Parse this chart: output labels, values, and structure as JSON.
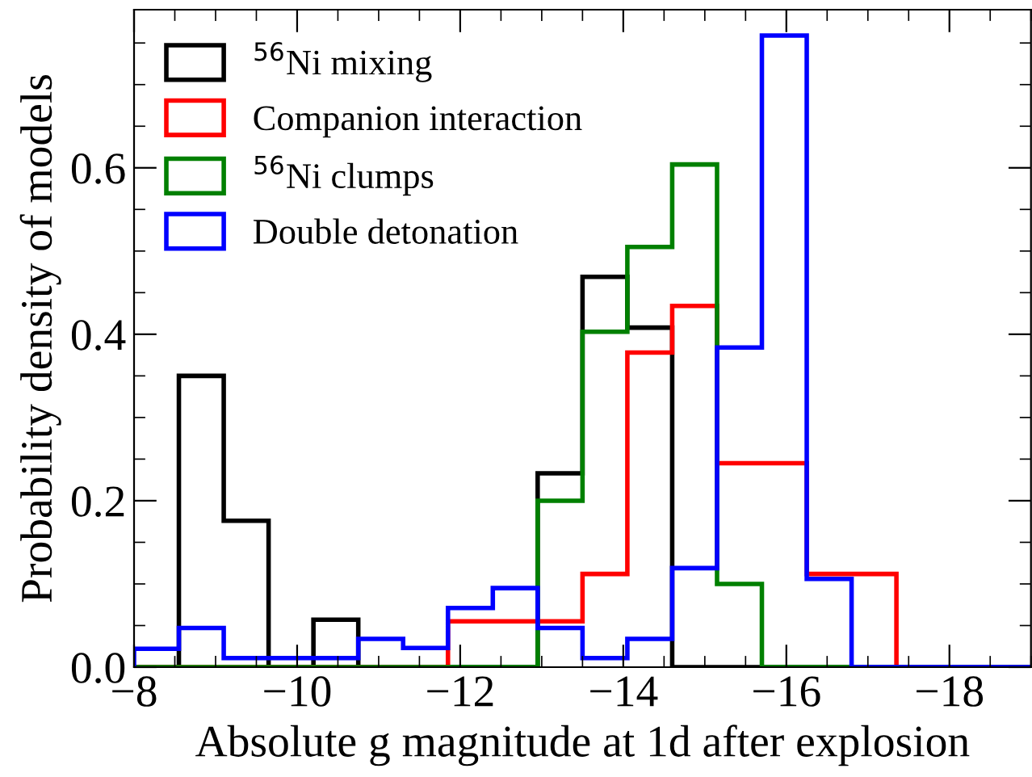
{
  "chart_data": {
    "type": "histogram",
    "xlabel": "Absolute g magnitude at 1d after explosion",
    "ylabel": "Probability density of models",
    "bins": [
      -8,
      -8.55,
      -9.1,
      -9.65,
      -10.2,
      -10.75,
      -11.3,
      -11.85,
      -12.4,
      -12.95,
      -13.5,
      -14.05,
      -14.6,
      -15.15,
      -15.7,
      -16.25,
      -16.8,
      -17.35,
      -17.9,
      -18.45,
      -19
    ],
    "series": [
      {
        "name": "$^{56}$Ni mixing",
        "color": "#000000",
        "values": [
          0,
          0.35,
          0.176,
          0,
          0.057,
          0,
          0,
          0,
          0,
          0.233,
          0.469,
          0.408,
          0,
          0,
          0,
          0,
          0,
          0,
          0,
          0
        ]
      },
      {
        "name": "Companion interaction",
        "color": "#ff0000",
        "values": [
          0,
          0,
          0,
          0,
          0,
          0,
          0,
          0.055,
          0.055,
          0.055,
          0.112,
          0.378,
          0.434,
          0.245,
          0.245,
          0.112,
          0.112,
          0,
          0,
          0
        ]
      },
      {
        "name": "$^{56}$Ni clumps",
        "color": "#008000",
        "values": [
          0,
          0,
          0,
          0,
          0,
          0,
          0,
          0,
          0,
          0.2,
          0.403,
          0.505,
          0.604,
          0.1,
          0,
          0,
          0,
          0,
          0,
          0
        ]
      },
      {
        "name": "Double detonation",
        "color": "#0000ff",
        "values": [
          0.022,
          0.047,
          0.011,
          0.011,
          0.011,
          0.034,
          0.023,
          0.071,
          0.095,
          0.047,
          0.011,
          0.034,
          0.119,
          0.384,
          0.759,
          0.106,
          0,
          0,
          0,
          0
        ]
      }
    ],
    "xlim": [
      -8,
      -19
    ],
    "xticks": [
      {
        "value": -8,
        "label": "−8"
      },
      {
        "value": -10,
        "label": "−10"
      },
      {
        "value": -12,
        "label": "−12"
      },
      {
        "value": -14,
        "label": "−14"
      },
      {
        "value": -16,
        "label": "−16"
      },
      {
        "value": -18,
        "label": "−18"
      }
    ],
    "ylim": [
      0,
      0.79
    ],
    "yticks": [
      {
        "value": 0,
        "label": "0.0"
      },
      {
        "value": 0.2,
        "label": "0.2"
      },
      {
        "value": 0.4,
        "label": "0.4"
      },
      {
        "value": 0.6,
        "label": "0.6"
      }
    ],
    "legend": "top left",
    "grid": false
  }
}
